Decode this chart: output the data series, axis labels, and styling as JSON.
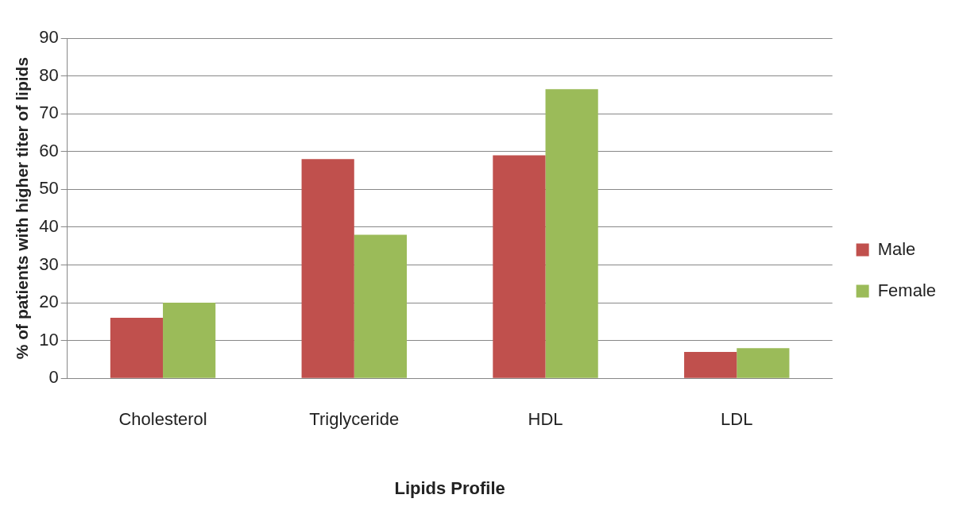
{
  "chart_data": {
    "type": "bar",
    "xlabel": "Lipids Profile",
    "ylabel": "% of patients with higher titer of lipids",
    "categories": [
      "Cholesterol",
      "Triglyceride",
      "HDL",
      "LDL"
    ],
    "series": [
      {
        "name": "Male",
        "color": "#c0504d",
        "values": [
          16,
          58,
          59,
          7
        ]
      },
      {
        "name": "Female",
        "color": "#9bbb59",
        "values": [
          20,
          38,
          76.5,
          8
        ]
      }
    ],
    "ylim": [
      0,
      90
    ],
    "yticks": [
      0,
      10,
      20,
      30,
      40,
      50,
      60,
      70,
      80,
      90
    ],
    "grid": "y",
    "legend": "right"
  }
}
